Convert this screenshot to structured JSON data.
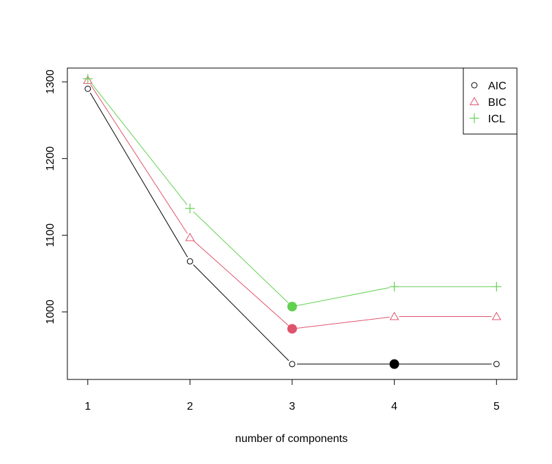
{
  "chart_data": {
    "type": "line",
    "title": "",
    "xlabel": "number of components",
    "ylabel": "",
    "x": [
      1,
      2,
      3,
      4,
      5
    ],
    "x_ticks": [
      "1",
      "2",
      "3",
      "4",
      "5"
    ],
    "y_ticks": [
      "1000",
      "1100",
      "1200",
      "1300"
    ],
    "xlim": [
      0.8,
      5.2
    ],
    "ylim": [
      912,
      1318
    ],
    "grid": false,
    "legend_position": "top-right",
    "series": [
      {
        "name": "AIC",
        "values": [
          1291,
          1066,
          932,
          932,
          932
        ],
        "color": "#000000",
        "marker": "open-circle",
        "best_index": 3
      },
      {
        "name": "BIC",
        "values": [
          1302,
          1097,
          978,
          994,
          994
        ],
        "color": "#DF536B",
        "marker": "open-triangle",
        "best_index": 2
      },
      {
        "name": "ICL",
        "values": [
          1304,
          1135,
          1007,
          1033,
          1033
        ],
        "color": "#61D04F",
        "marker": "plus",
        "best_index": 2
      }
    ]
  }
}
